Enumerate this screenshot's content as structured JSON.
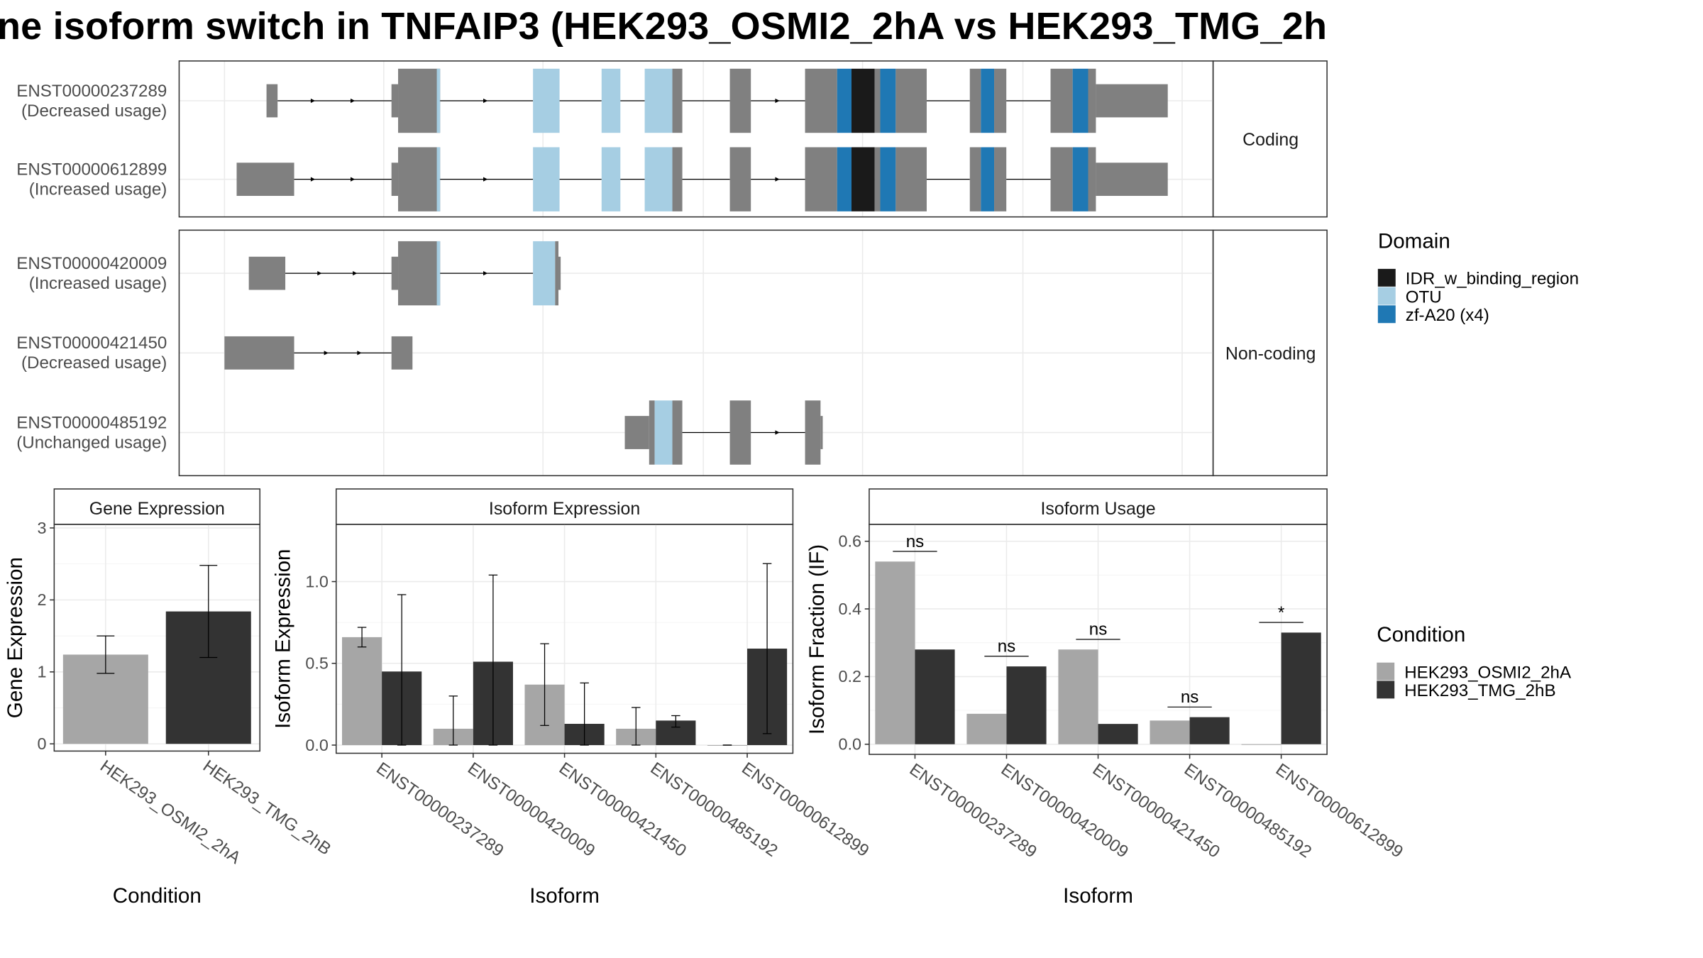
{
  "title": "ne isoform switch in TNFAIP3 (HEK293_OSMI2_2hA vs HEK293_TMG_2h",
  "colors": {
    "intron": "#000000",
    "exon": "#808080",
    "IDR_w_binding_region": "#1a1a1a",
    "OTU": "#a6cee3",
    "zf-A20 (x4)": "#1f78b4",
    "HEK293_OSMI2_2hA": "#a6a6a6",
    "HEK293_TMG_2hB": "#333333"
  },
  "transcript_panel": {
    "facets": [
      "Coding",
      "Non-coding"
    ],
    "transcripts": [
      {
        "id": "ENST00000237289",
        "usage": "(Decreased usage)",
        "facet": "Coding"
      },
      {
        "id": "ENST00000612899",
        "usage": "(Increased usage)",
        "facet": "Coding"
      },
      {
        "id": "ENST00000420009",
        "usage": "(Increased usage)",
        "facet": "Non-coding"
      },
      {
        "id": "ENST00000421450",
        "usage": "(Decreased usage)",
        "facet": "Non-coding"
      },
      {
        "id": "ENST00000485192",
        "usage": "(Unchanged usage)",
        "facet": "Non-coding"
      }
    ]
  },
  "domain_legend": {
    "title": "Domain",
    "items": [
      {
        "name": "IDR_w_binding_region",
        "color": "#1a1a1a"
      },
      {
        "name": "OTU",
        "color": "#a6cee3"
      },
      {
        "name": "zf-A20 (x4)",
        "color": "#1f78b4"
      }
    ]
  },
  "condition_legend": {
    "title": "Condition",
    "items": [
      {
        "name": "HEK293_OSMI2_2hA",
        "color": "#a6a6a6"
      },
      {
        "name": "HEK293_TMG_2hB",
        "color": "#333333"
      }
    ]
  },
  "chart_data": [
    {
      "type": "bar",
      "title": "Gene Expression",
      "xlabel": "Condition",
      "ylabel": "Gene Expression",
      "ylim": [
        -0.1,
        3.05
      ],
      "yticks": [
        0,
        1,
        2,
        3
      ],
      "categories": [
        "HEK293_OSMI2_2hA",
        "HEK293_TMG_2hB"
      ],
      "values": [
        1.24,
        1.84
      ],
      "errors": [
        [
          0.98,
          1.5
        ],
        [
          1.2,
          2.48
        ]
      ],
      "colors": [
        "#a6a6a6",
        "#333333"
      ]
    },
    {
      "type": "bar",
      "title": "Isoform Expression",
      "xlabel": "Isoform",
      "ylabel": "Isoform Expression",
      "ylim": [
        -0.05,
        1.35
      ],
      "yticks": [
        0.0,
        0.5,
        1.0
      ],
      "categories": [
        "ENST00000237289",
        "ENST00000420009",
        "ENST00000421450",
        "ENST00000485192",
        "ENST00000612899"
      ],
      "series": [
        {
          "name": "HEK293_OSMI2_2hA",
          "values": [
            0.66,
            0.1,
            0.37,
            0.1,
            0.0
          ],
          "errors": [
            [
              0.6,
              0.72
            ],
            [
              0.0,
              0.3
            ],
            [
              0.12,
              0.62
            ],
            [
              0.0,
              0.23
            ],
            [
              0.0,
              0.0
            ]
          ]
        },
        {
          "name": "HEK293_TMG_2hB",
          "values": [
            0.45,
            0.51,
            0.13,
            0.15,
            0.59
          ],
          "errors": [
            [
              0.0,
              0.92
            ],
            [
              0.0,
              1.04
            ],
            [
              0.0,
              0.38
            ],
            [
              0.11,
              0.18
            ],
            [
              0.07,
              1.11
            ]
          ]
        }
      ]
    },
    {
      "type": "bar",
      "title": "Isoform Usage",
      "xlabel": "Isoform",
      "ylabel": "Isoform Fraction (IF)",
      "ylim": [
        -0.03,
        0.65
      ],
      "yticks": [
        0.0,
        0.2,
        0.4,
        0.6
      ],
      "categories": [
        "ENST00000237289",
        "ENST00000420009",
        "ENST00000421450",
        "ENST00000485192",
        "ENST00000612899"
      ],
      "series": [
        {
          "name": "HEK293_OSMI2_2hA",
          "values": [
            0.54,
            0.09,
            0.28,
            0.07,
            0.0
          ]
        },
        {
          "name": "HEK293_TMG_2hB",
          "values": [
            0.28,
            0.23,
            0.06,
            0.08,
            0.33
          ]
        }
      ],
      "significance": [
        {
          "label": "ns",
          "y": 0.57
        },
        {
          "label": "ns",
          "y": 0.26
        },
        {
          "label": "ns",
          "y": 0.31
        },
        {
          "label": "ns",
          "y": 0.11
        },
        {
          "label": "*",
          "y": 0.36
        }
      ]
    }
  ]
}
